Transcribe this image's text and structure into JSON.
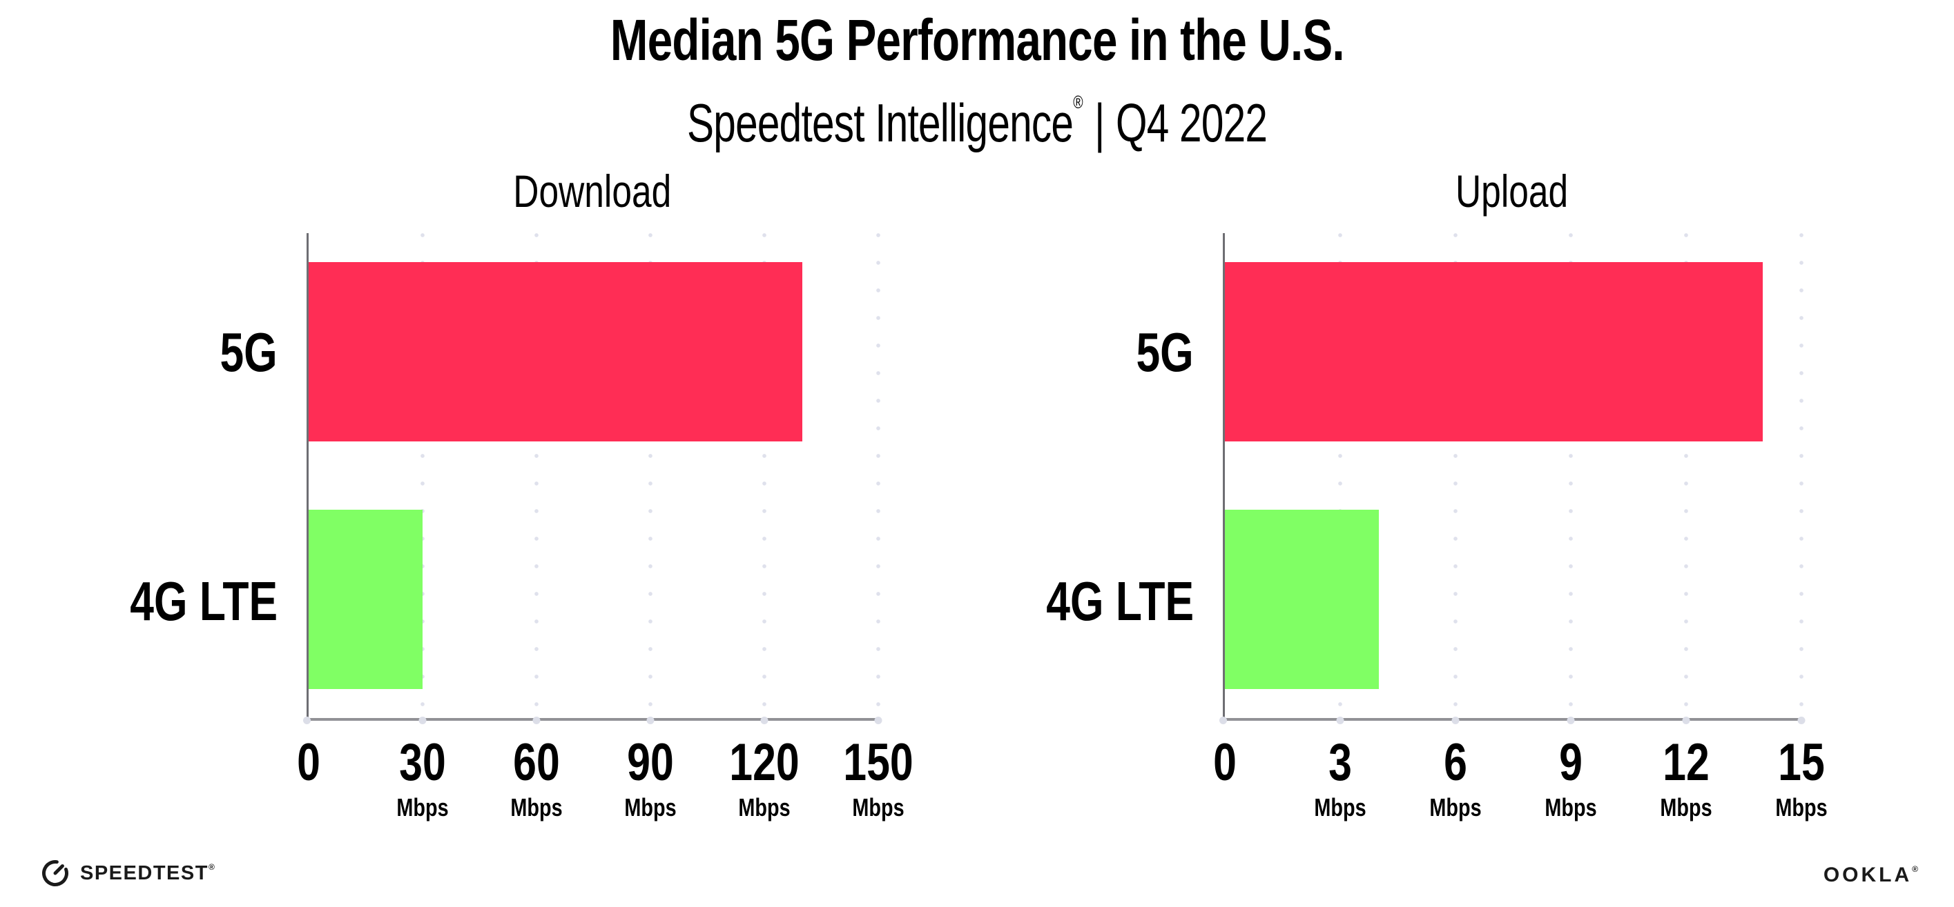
{
  "header": {
    "title": "Median 5G Performance in the U.S.",
    "subtitle_brand": "Speedtest Intelligence",
    "subtitle_reg": "®",
    "subtitle_sep": "|",
    "subtitle_period": "Q4 2022"
  },
  "colors": {
    "series": [
      "#FF2D55",
      "#80FF64"
    ],
    "axis": "#919196",
    "gridline_dots": "#dfe1ec",
    "text": "#000000"
  },
  "chart_data": [
    {
      "type": "bar",
      "orientation": "horizontal",
      "title": "Download",
      "categories": [
        "5G",
        "4G LTE"
      ],
      "values": [
        130,
        30
      ],
      "unit": "Mbps",
      "xlim": [
        0,
        150
      ],
      "ticks": [
        0,
        30,
        60,
        90,
        120,
        150
      ],
      "grid": "dotted-vertical-gridlines",
      "legend": "none"
    },
    {
      "type": "bar",
      "orientation": "horizontal",
      "title": "Upload",
      "categories": [
        "5G",
        "4G LTE"
      ],
      "values": [
        14,
        4
      ],
      "unit": "Mbps",
      "xlim": [
        0,
        15
      ],
      "ticks": [
        0,
        3,
        6,
        9,
        12,
        15
      ],
      "grid": "dotted-vertical-gridlines",
      "legend": "none"
    }
  ],
  "footer": {
    "speedtest_label": "SPEEDTEST",
    "speedtest_reg": "®",
    "ookla_label": "OOKLA",
    "ookla_reg": "®"
  }
}
